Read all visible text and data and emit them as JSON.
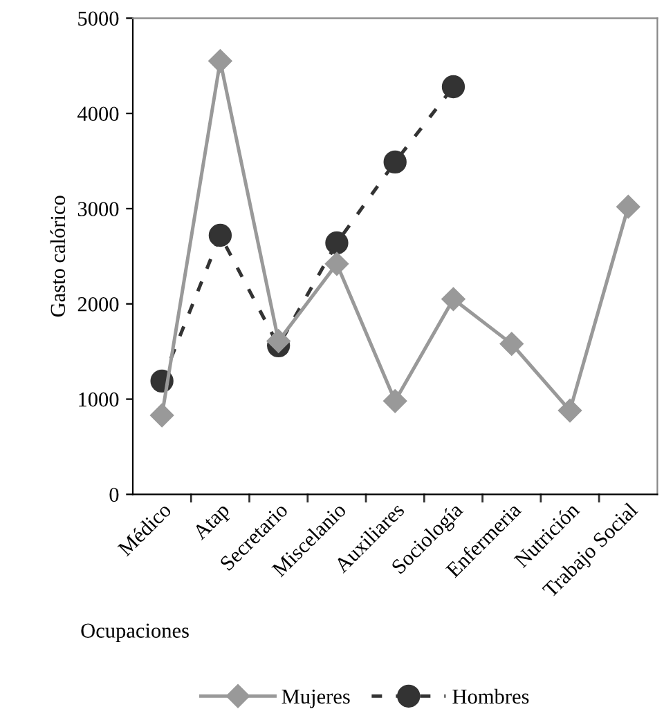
{
  "chart_data": {
    "type": "line",
    "xlabel": "Ocupaciones",
    "ylabel": "Gasto calórico",
    "categories": [
      "Médico",
      "Atap",
      "Secretario",
      "Miscelanio",
      "Auxiliares",
      "Sociología",
      "Enfermeria",
      "Nutrición",
      "Trabajo Social"
    ],
    "series": [
      {
        "name": "Mujeres",
        "color": "#999999",
        "marker": "diamond",
        "line_style": "solid",
        "values": [
          830,
          4550,
          1610,
          2420,
          980,
          2050,
          1580,
          880,
          3020
        ]
      },
      {
        "name": "Hombres",
        "color": "#333333",
        "marker": "circle",
        "line_style": "dashed",
        "values": [
          1190,
          2720,
          1560,
          2640,
          3490,
          4280,
          null,
          null,
          null
        ]
      }
    ],
    "ylim": [
      0,
      5000
    ],
    "yticks": [
      0,
      1000,
      2000,
      3000,
      4000,
      5000
    ],
    "grid": false,
    "legend": "bottom"
  }
}
